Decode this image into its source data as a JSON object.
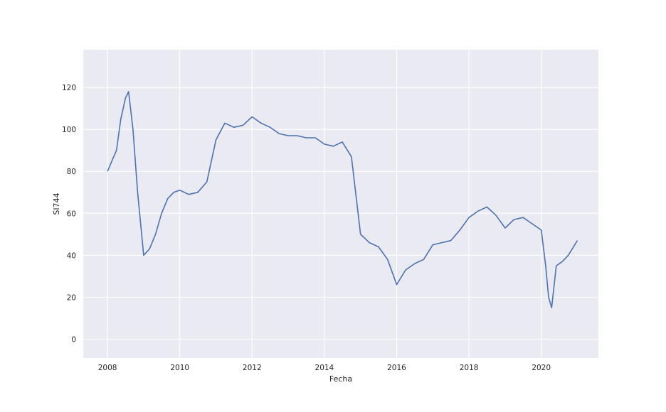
{
  "colors": {
    "plot_background": "#eaeaf2",
    "grid": "#ffffff",
    "series": "#4c72b0",
    "text": "#262626"
  },
  "chart_data": {
    "type": "line",
    "title": "",
    "xlabel": "Fecha",
    "ylabel": "SI744",
    "xlim": [
      "2007-05-01",
      "2021-08-01"
    ],
    "ylim": [
      -9,
      138
    ],
    "x_ticks": [
      "2008",
      "2010",
      "2012",
      "2014",
      "2016",
      "2018",
      "2020"
    ],
    "y_ticks": [
      "0",
      "20",
      "40",
      "60",
      "80",
      "100",
      "120"
    ],
    "grid": true,
    "legend": "none",
    "series": [
      {
        "points": [
          [
            "2008-01-01",
            80
          ],
          [
            "2008-02-15",
            85
          ],
          [
            "2008-04-01",
            90
          ],
          [
            "2008-05-15",
            105
          ],
          [
            "2008-07-01",
            115
          ],
          [
            "2008-08-01",
            118
          ],
          [
            "2008-09-15",
            100
          ],
          [
            "2008-11-01",
            70
          ],
          [
            "2009-01-01",
            40
          ],
          [
            "2009-03-01",
            43
          ],
          [
            "2009-05-01",
            50
          ],
          [
            "2009-07-01",
            60
          ],
          [
            "2009-09-01",
            67
          ],
          [
            "2009-11-01",
            70
          ],
          [
            "2010-01-01",
            71
          ],
          [
            "2010-04-01",
            69
          ],
          [
            "2010-07-01",
            70
          ],
          [
            "2010-10-01",
            75
          ],
          [
            "2011-01-01",
            95
          ],
          [
            "2011-04-01",
            103
          ],
          [
            "2011-07-01",
            101
          ],
          [
            "2011-10-01",
            102
          ],
          [
            "2012-01-01",
            106
          ],
          [
            "2012-04-01",
            103
          ],
          [
            "2012-07-01",
            101
          ],
          [
            "2012-10-01",
            98
          ],
          [
            "2013-01-01",
            97
          ],
          [
            "2013-04-01",
            97
          ],
          [
            "2013-07-01",
            96
          ],
          [
            "2013-10-01",
            96
          ],
          [
            "2014-01-01",
            93
          ],
          [
            "2014-04-01",
            92
          ],
          [
            "2014-07-01",
            94
          ],
          [
            "2014-10-01",
            87
          ],
          [
            "2015-01-01",
            50
          ],
          [
            "2015-04-01",
            46
          ],
          [
            "2015-07-01",
            44
          ],
          [
            "2015-10-01",
            38
          ],
          [
            "2016-01-01",
            26
          ],
          [
            "2016-04-01",
            33
          ],
          [
            "2016-07-01",
            36
          ],
          [
            "2016-10-01",
            38
          ],
          [
            "2017-01-01",
            45
          ],
          [
            "2017-04-01",
            46
          ],
          [
            "2017-07-01",
            47
          ],
          [
            "2017-10-01",
            52
          ],
          [
            "2018-01-01",
            58
          ],
          [
            "2018-04-01",
            61
          ],
          [
            "2018-07-01",
            63
          ],
          [
            "2018-10-01",
            59
          ],
          [
            "2019-01-01",
            53
          ],
          [
            "2019-04-01",
            57
          ],
          [
            "2019-07-01",
            58
          ],
          [
            "2019-10-01",
            55
          ],
          [
            "2020-01-01",
            52
          ],
          [
            "2020-02-15",
            35
          ],
          [
            "2020-03-15",
            20
          ],
          [
            "2020-04-15",
            15
          ],
          [
            "2020-06-01",
            35
          ],
          [
            "2020-08-01",
            37
          ],
          [
            "2020-10-01",
            40
          ],
          [
            "2020-12-31",
            47
          ]
        ]
      }
    ]
  }
}
